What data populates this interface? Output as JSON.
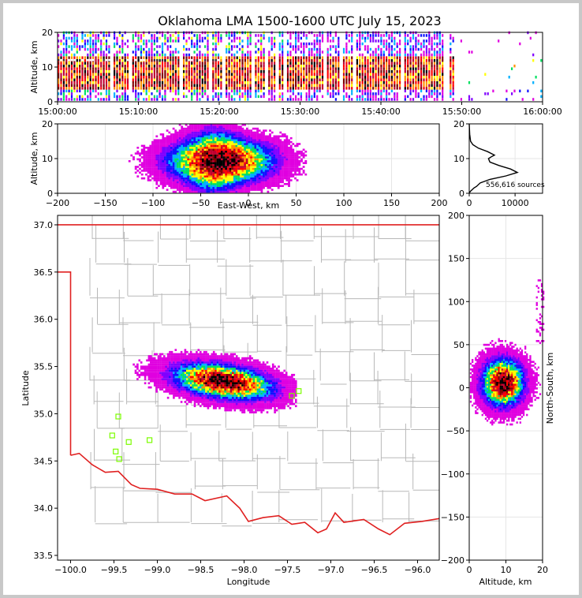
{
  "title": "Oklahoma LMA 1500-1600 UTC July 15, 2023",
  "colors": {
    "state_border": "#e02020",
    "county_lines": "#b8b8b8",
    "sensor_marker": "#7cfc00",
    "density_scale": [
      "#ffffff",
      "#e000e0",
      "#8000ff",
      "#1010ff",
      "#00b0ff",
      "#00e060",
      "#ffff00",
      "#ff9000",
      "#ff0000",
      "#c00030",
      "#800000",
      "#000000"
    ]
  },
  "chart_data": [
    {
      "id": "time_height",
      "type": "heatmap",
      "xlabel": "",
      "ylabel": "Altitude, km",
      "x_tick_labels": [
        "15:00:00",
        "15:10:00",
        "15:20:00",
        "15:30:00",
        "15:40:00",
        "15:50:00",
        "16:00:00"
      ],
      "xlim": [
        "15:00:00",
        "16:00:00"
      ],
      "ylim": [
        0,
        20
      ],
      "y_ticks": [
        0,
        10,
        20
      ],
      "core_altitude_km": [
        3,
        13
      ],
      "active_until": "15:49:00"
    },
    {
      "id": "ew_altitude",
      "type": "heatmap",
      "xlabel": "East-West, km",
      "ylabel": "Altitude, km",
      "xlim": [
        -200,
        200
      ],
      "ylim": [
        0,
        20
      ],
      "x_ticks": [
        -200,
        -150,
        -100,
        -50,
        0,
        50,
        100,
        150,
        200
      ],
      "y_ticks": [
        0,
        10,
        20
      ],
      "peak": {
        "x_km": -30,
        "alt_km": 9
      },
      "extent_km": [
        -140,
        50
      ]
    },
    {
      "id": "altitude_histogram",
      "type": "line",
      "xlabel": "",
      "ylabel": "",
      "xlim": [
        0,
        16000
      ],
      "ylim": [
        0,
        20
      ],
      "x_ticks": [
        0,
        10000
      ],
      "y_ticks": [
        0,
        10,
        20
      ],
      "annotation": "556,616 sources",
      "x": [
        0,
        200,
        600,
        1000,
        1600,
        2400,
        4500,
        8000,
        10500,
        9000,
        6500,
        4500,
        4200,
        4800,
        5500,
        4000,
        2000,
        800,
        300,
        100,
        0
      ],
      "y": [
        0,
        0.5,
        1,
        1.5,
        2,
        3,
        4,
        5,
        6,
        7,
        8,
        9,
        10,
        10.5,
        11,
        12,
        13,
        14,
        15,
        17,
        20
      ]
    },
    {
      "id": "plan_view",
      "type": "heatmap",
      "xlabel": "Longitude",
      "ylabel": "Latitude",
      "xlim": [
        -100.15,
        -95.75
      ],
      "ylim": [
        33.45,
        37.1
      ],
      "x_ticks": [
        -100.0,
        -99.5,
        -99.0,
        -98.5,
        -98.0,
        -97.5,
        -97.0,
        -96.5,
        -96.0
      ],
      "y_ticks": [
        33.5,
        34.0,
        34.5,
        35.0,
        35.5,
        36.0,
        36.5,
        37.0
      ],
      "x_tick_labels": [
        "−100.0",
        "−99.5",
        "−99.0",
        "−98.5",
        "−98.0",
        "−97.5",
        "−97.0",
        "−96.5",
        "−96.0"
      ],
      "y_tick_labels": [
        "33.5",
        "34.0",
        "34.5",
        "35.0",
        "35.5",
        "36.0",
        "36.5",
        "37.0"
      ],
      "sensors": [
        {
          "lon": -99.45,
          "lat": 34.97
        },
        {
          "lon": -99.52,
          "lat": 34.77
        },
        {
          "lon": -99.33,
          "lat": 34.7
        },
        {
          "lon": -99.48,
          "lat": 34.6
        },
        {
          "lon": -99.44,
          "lat": 34.52
        },
        {
          "lon": -99.09,
          "lat": 34.72
        },
        {
          "lon": -97.45,
          "lat": 35.19
        },
        {
          "lon": -97.37,
          "lat": 35.24
        }
      ],
      "core": {
        "lon": -98.25,
        "lat": 35.33
      }
    },
    {
      "id": "ns_altitude",
      "type": "heatmap",
      "xlabel": "Altitude, km",
      "ylabel": "North-South, km",
      "xlim": [
        0,
        20
      ],
      "ylim": [
        -200,
        200
      ],
      "x_ticks": [
        0,
        10,
        20
      ],
      "y_ticks": [
        -200,
        -150,
        -100,
        -50,
        0,
        50,
        100,
        150,
        200
      ],
      "peak": {
        "alt_km": 9,
        "y_km": 5
      }
    }
  ]
}
